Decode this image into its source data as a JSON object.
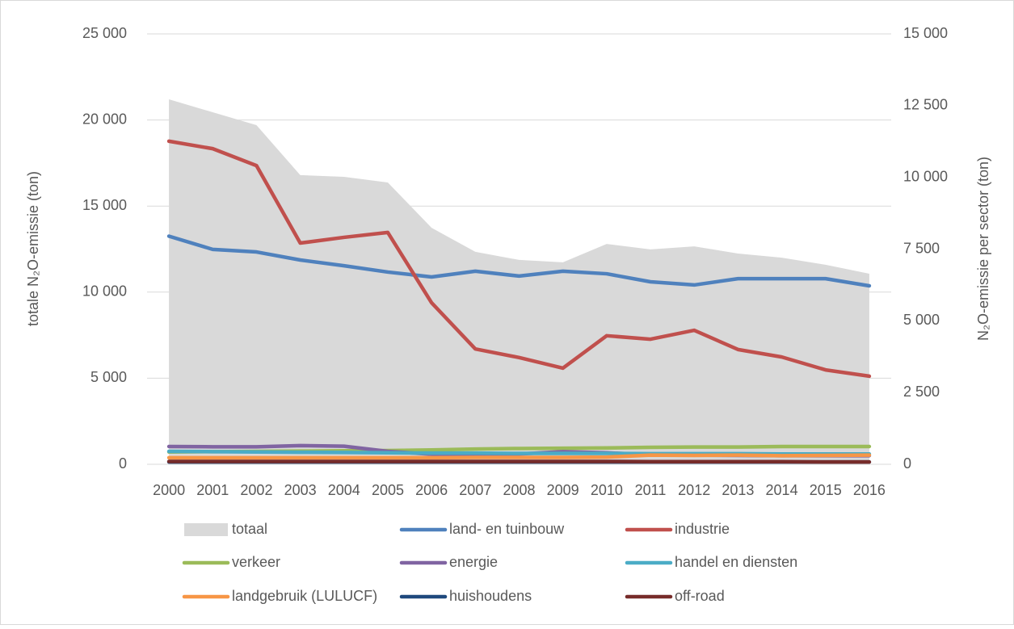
{
  "chart_data": {
    "type": "line",
    "y_label": "totale N₂O-emissie (ton)",
    "y2_label": "N₂O-emissie per sector (ton)",
    "categories": [
      "2000",
      "2001",
      "2002",
      "2003",
      "2004",
      "2005",
      "2006",
      "2007",
      "2008",
      "2009",
      "2010",
      "2011",
      "2012",
      "2013",
      "2014",
      "2015",
      "2016"
    ],
    "ylim": [
      0,
      25000
    ],
    "yticks": [
      0,
      {
        "value": 5000,
        "label": "5 000"
      },
      {
        "value": 10000,
        "label": "10 000"
      },
      {
        "value": 15000,
        "label": "15 000"
      },
      {
        "value": 20000,
        "label": "20 000"
      },
      {
        "value": 25000,
        "label": "25 000"
      }
    ],
    "y2lim": [
      0,
      15000
    ],
    "y2ticks": [
      0,
      {
        "value": 2500,
        "label": "2 500"
      },
      {
        "value": 5000,
        "label": "5 000"
      },
      {
        "value": 7500,
        "label": "7 500"
      },
      {
        "value": 10000,
        "label": "10 000"
      },
      {
        "value": 12500,
        "label": "12 500"
      },
      {
        "value": 15000,
        "label": "15 000"
      }
    ],
    "grid": true,
    "legend": "bottom",
    "series": [
      {
        "name": "totaal",
        "style": "area",
        "color": "#d9d9d9",
        "values": [
          21200,
          20450,
          19700,
          16800,
          16700,
          16370,
          13740,
          12340,
          11870,
          11730,
          12800,
          12480,
          12660,
          12240,
          12000,
          11590,
          11070
        ]
      },
      {
        "name": "land- en tuinbouw",
        "axis": "y2",
        "color": "#4f81bd",
        "values": [
          7950,
          7490,
          7400,
          7120,
          6920,
          6700,
          6530,
          6730,
          6560,
          6730,
          6640,
          6360,
          6250,
          6470,
          6470,
          6470,
          6220
        ]
      },
      {
        "name": "industrie",
        "axis": "y2",
        "color": "#c0504d",
        "values": [
          11260,
          11000,
          10410,
          7710,
          7910,
          8080,
          5630,
          4020,
          3720,
          3350,
          4480,
          4360,
          4670,
          4000,
          3740,
          3290,
          3070
        ]
      },
      {
        "name": "verkeer",
        "axis": "y2",
        "color": "#9bbb59",
        "values": [
          430,
          440,
          450,
          460,
          470,
          480,
          500,
          530,
          550,
          560,
          570,
          590,
          600,
          600,
          620,
          620,
          620
        ]
      },
      {
        "name": "energie",
        "axis": "y2",
        "color": "#8064a2",
        "values": [
          620,
          610,
          610,
          650,
          630,
          450,
          350,
          340,
          360,
          440,
          400,
          330,
          320,
          310,
          300,
          300,
          300
        ]
      },
      {
        "name": "handel en diensten",
        "axis": "y2",
        "color": "#4bacc6",
        "values": [
          450,
          440,
          430,
          420,
          410,
          400,
          390,
          390,
          380,
          380,
          380,
          370,
          370,
          370,
          360,
          360,
          360
        ]
      },
      {
        "name": "landgebruik (LULUCF)",
        "axis": "y2",
        "color": "#f79646",
        "values": [
          230,
          230,
          230,
          230,
          230,
          230,
          230,
          240,
          240,
          240,
          250,
          320,
          310,
          320,
          300,
          310,
          320
        ]
      },
      {
        "name": "huishoudens",
        "axis": "y2",
        "color": "#1f497d",
        "values": [
          80,
          80,
          80,
          80,
          80,
          80,
          80,
          80,
          80,
          80,
          80,
          80,
          80,
          80,
          80,
          80,
          80
        ]
      },
      {
        "name": "off-road",
        "axis": "y2",
        "color": "#772c2a",
        "values": [
          100,
          100,
          100,
          100,
          100,
          100,
          100,
          100,
          100,
          100,
          100,
          90,
          90,
          90,
          90,
          80,
          80
        ]
      }
    ]
  }
}
